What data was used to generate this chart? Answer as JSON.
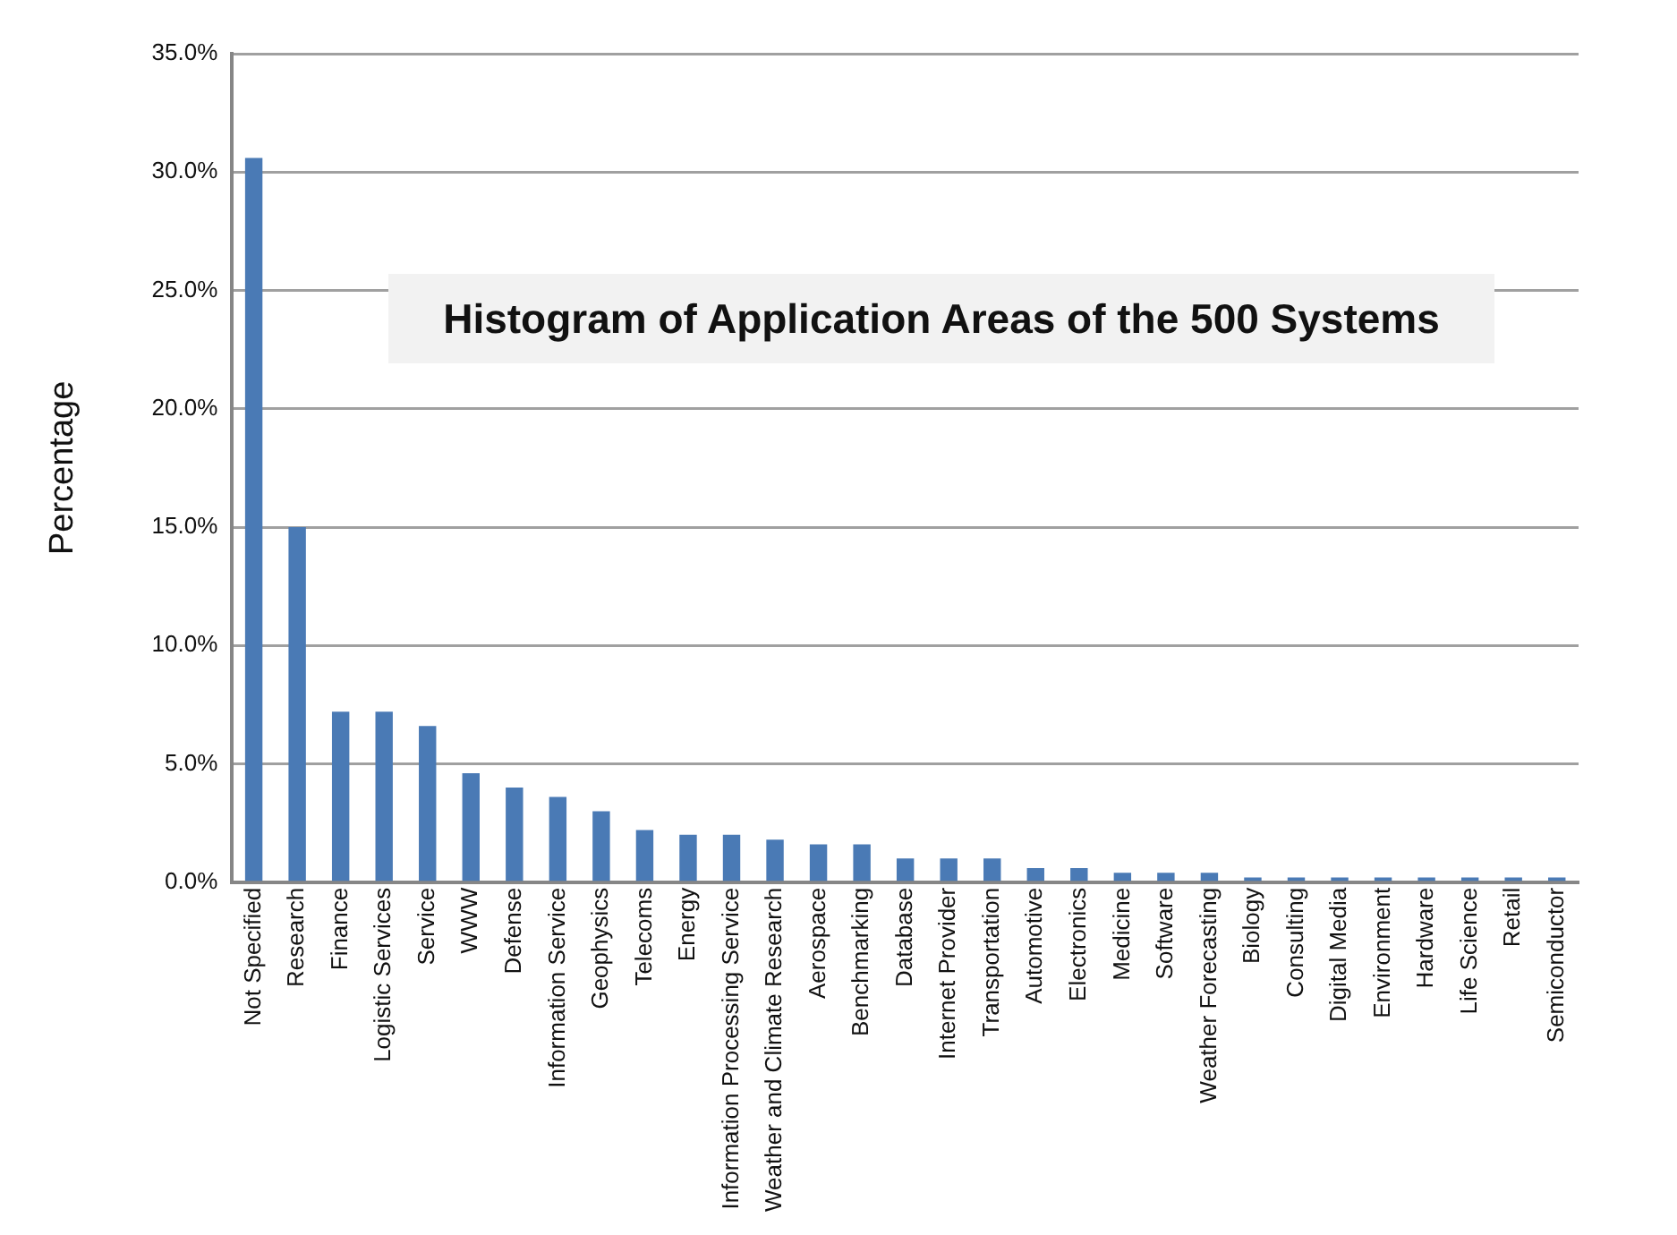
{
  "chart_data": {
    "type": "bar",
    "title": "Histogram of Application Areas of the 500 Systems",
    "ylabel": "Percentage",
    "categories": [
      "Not Specified",
      "Research",
      "Finance",
      "Logistic Services",
      "Service",
      "WWW",
      "Defense",
      "Information Service",
      "Geophysics",
      "Telecoms",
      "Energy",
      "Information Processing Service",
      "Weather and Climate Research",
      "Aerospace",
      "Benchmarking",
      "Database",
      "Internet Provider",
      "Transportation",
      "Automotive",
      "Electronics",
      "Medicine",
      "Software",
      "Weather Forecasting",
      "Biology",
      "Consulting",
      "Digital Media",
      "Environment",
      "Hardware",
      "Life Science",
      "Retail",
      "Semiconductor"
    ],
    "values": [
      30.6,
      15.0,
      7.2,
      7.2,
      6.6,
      4.6,
      4.0,
      3.6,
      3.0,
      2.2,
      2.0,
      2.0,
      1.8,
      1.6,
      1.6,
      1.0,
      1.0,
      1.0,
      0.6,
      0.6,
      0.4,
      0.4,
      0.4,
      0.2,
      0.2,
      0.2,
      0.2,
      0.2,
      0.2,
      0.2,
      0.2
    ],
    "color": "#4a7ab5",
    "ylim": [
      0,
      35
    ],
    "yticks": [
      {
        "value": 0,
        "label": "0.0%"
      },
      {
        "value": 5,
        "label": "5.0%"
      },
      {
        "value": 10,
        "label": "10.0%"
      },
      {
        "value": 15,
        "label": "15.0%"
      },
      {
        "value": 20,
        "label": "20.0%"
      },
      {
        "value": 25,
        "label": "25.0%"
      },
      {
        "value": 30,
        "label": "30.0%"
      },
      {
        "value": 35,
        "label": "35.0%"
      }
    ],
    "grid": "y"
  }
}
